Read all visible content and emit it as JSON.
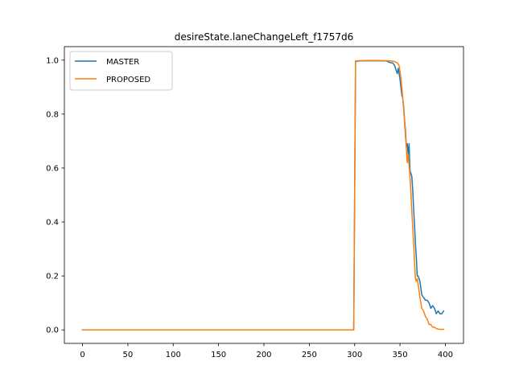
{
  "chart_data": {
    "type": "line",
    "title": "desireState.laneChangeLeft_f1757d6",
    "xlabel": "",
    "ylabel": "",
    "xlim": [
      -20,
      420
    ],
    "ylim": [
      -0.05,
      1.05
    ],
    "xticks": [
      0,
      50,
      100,
      150,
      200,
      250,
      300,
      350,
      400
    ],
    "xtick_labels": [
      "0",
      "50",
      "100",
      "150",
      "200",
      "250",
      "300",
      "350",
      "400"
    ],
    "yticks": [
      0.0,
      0.2,
      0.4,
      0.6,
      0.8,
      1.0
    ],
    "ytick_labels": [
      "0.0",
      "0.2",
      "0.4",
      "0.6",
      "0.8",
      "1.0"
    ],
    "grid": false,
    "legend_position": "top-left",
    "series": [
      {
        "name": "MASTER",
        "color": "#1f77b4",
        "x": [
          0,
          100,
          200,
          299,
          300,
          301,
          305,
          320,
          335,
          340,
          342,
          344,
          346,
          347,
          348,
          349,
          350,
          351,
          352,
          353,
          354,
          355,
          356,
          357,
          358,
          359,
          360,
          361,
          362,
          363,
          364,
          365,
          366,
          367,
          368,
          369,
          370,
          372,
          374,
          376,
          378,
          380,
          382,
          384,
          386,
          388,
          390,
          392,
          394,
          396,
          398
        ],
        "y": [
          0,
          0,
          0,
          0,
          0.5,
          0.995,
          0.997,
          0.998,
          0.997,
          0.99,
          0.99,
          0.98,
          0.96,
          0.95,
          0.97,
          0.95,
          0.93,
          0.9,
          0.87,
          0.86,
          0.83,
          0.78,
          0.74,
          0.68,
          0.69,
          0.65,
          0.69,
          0.59,
          0.58,
          0.57,
          0.52,
          0.45,
          0.39,
          0.32,
          0.27,
          0.2,
          0.2,
          0.18,
          0.13,
          0.12,
          0.11,
          0.11,
          0.1,
          0.08,
          0.09,
          0.08,
          0.06,
          0.07,
          0.06,
          0.06,
          0.07
        ]
      },
      {
        "name": "PROPOSED",
        "color": "#ff7f0e",
        "x": [
          0,
          100,
          200,
          299,
          300,
          301,
          305,
          320,
          335,
          340,
          343,
          345,
          347,
          349,
          350,
          351,
          352,
          353,
          354,
          355,
          356,
          357,
          358,
          359,
          360,
          361,
          362,
          363,
          364,
          365,
          366,
          367,
          368,
          369,
          370,
          372,
          374,
          376,
          378,
          380,
          382,
          384,
          386,
          388,
          390,
          392,
          394,
          396,
          398
        ],
        "y": [
          0,
          0,
          0,
          0,
          0.5,
          0.997,
          0.998,
          0.999,
          0.998,
          0.997,
          0.996,
          0.993,
          0.99,
          0.98,
          0.96,
          0.93,
          0.9,
          0.86,
          0.82,
          0.77,
          0.72,
          0.67,
          0.62,
          0.65,
          0.61,
          0.57,
          0.51,
          0.44,
          0.38,
          0.32,
          0.25,
          0.19,
          0.18,
          0.19,
          0.17,
          0.12,
          0.08,
          0.07,
          0.05,
          0.04,
          0.02,
          0.02,
          0.01,
          0.01,
          0.005,
          0.003,
          0.002,
          0.002,
          0.002
        ]
      }
    ]
  }
}
